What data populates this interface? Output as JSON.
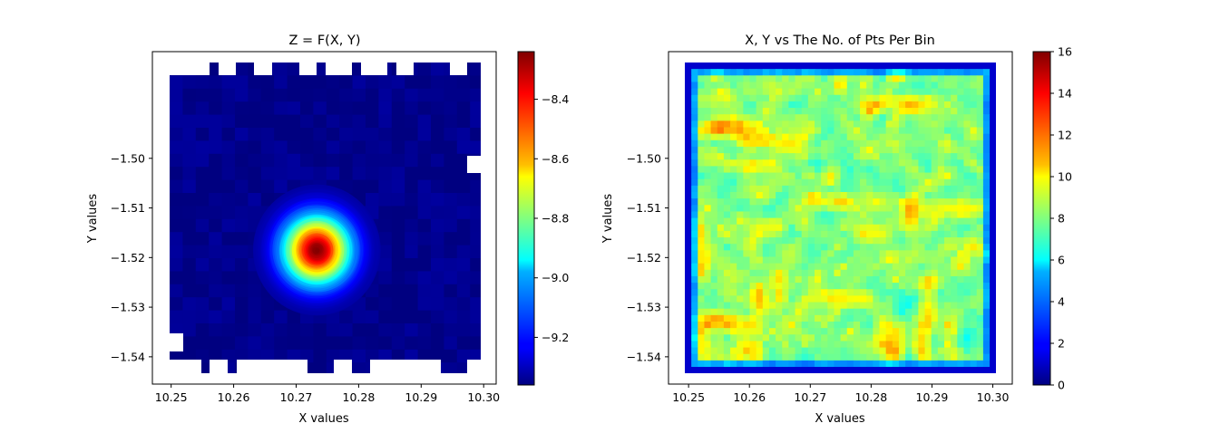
{
  "chart_data": [
    {
      "type": "heatmap",
      "title": "Z = F(X, Y)",
      "xlabel": "X values",
      "ylabel": "Y values",
      "xlim": [
        10.247,
        10.302
      ],
      "ylim": [
        -1.5455,
        -1.4785
      ],
      "x_ticks": [
        {
          "value": 10.25,
          "label": "10.25"
        },
        {
          "value": 10.26,
          "label": "10.26"
        },
        {
          "value": 10.27,
          "label": "10.27"
        },
        {
          "value": 10.28,
          "label": "10.28"
        },
        {
          "value": 10.29,
          "label": "10.29"
        },
        {
          "value": 10.3,
          "label": "10.30"
        }
      ],
      "y_ticks": [
        {
          "value": -1.5,
          "label": "−1.50"
        },
        {
          "value": -1.51,
          "label": "−1.51"
        },
        {
          "value": -1.52,
          "label": "−1.52"
        },
        {
          "value": -1.53,
          "label": "−1.53"
        },
        {
          "value": -1.54,
          "label": "−1.54"
        }
      ],
      "colormap": "jet",
      "colorbar": {
        "min": -9.36,
        "max": -8.24,
        "ticks": [
          {
            "value": -8.4,
            "label": "−8.4"
          },
          {
            "value": -8.6,
            "label": "−8.6"
          },
          {
            "value": -8.8,
            "label": "−8.8"
          },
          {
            "value": -9.0,
            "label": "−9.0"
          },
          {
            "value": -9.2,
            "label": "−9.2"
          }
        ]
      },
      "peak": {
        "x": 10.2733,
        "y": -1.5185,
        "z": -8.24
      },
      "background_value": -9.35,
      "grid": false
    },
    {
      "type": "heatmap",
      "title": "X, Y vs The No. of Pts Per Bin",
      "xlabel": "X values",
      "ylabel": "Y values",
      "xlim": [
        10.2467,
        10.3032
      ],
      "ylim": [
        -1.5455,
        -1.4785
      ],
      "x_ticks": [
        {
          "value": 10.25,
          "label": "10.25"
        },
        {
          "value": 10.26,
          "label": "10.26"
        },
        {
          "value": 10.27,
          "label": "10.27"
        },
        {
          "value": 10.28,
          "label": "10.28"
        },
        {
          "value": 10.29,
          "label": "10.29"
        },
        {
          "value": 10.3,
          "label": "10.30"
        }
      ],
      "y_ticks": [
        {
          "value": -1.5,
          "label": "−1.50"
        },
        {
          "value": -1.51,
          "label": "−1.51"
        },
        {
          "value": -1.52,
          "label": "−1.52"
        },
        {
          "value": -1.53,
          "label": "−1.53"
        },
        {
          "value": -1.54,
          "label": "−1.54"
        }
      ],
      "colormap": "jet",
      "colorbar": {
        "min": 0,
        "max": 16,
        "ticks": [
          {
            "value": 0,
            "label": "0"
          },
          {
            "value": 2,
            "label": "2"
          },
          {
            "value": 4,
            "label": "4"
          },
          {
            "value": 6,
            "label": "6"
          },
          {
            "value": 8,
            "label": "8"
          },
          {
            "value": 10,
            "label": "10"
          },
          {
            "value": 12,
            "label": "12"
          },
          {
            "value": 14,
            "label": "14"
          },
          {
            "value": 16,
            "label": "16"
          }
        ]
      },
      "typical_value": 8,
      "edge_value": 2,
      "grid": false
    }
  ]
}
